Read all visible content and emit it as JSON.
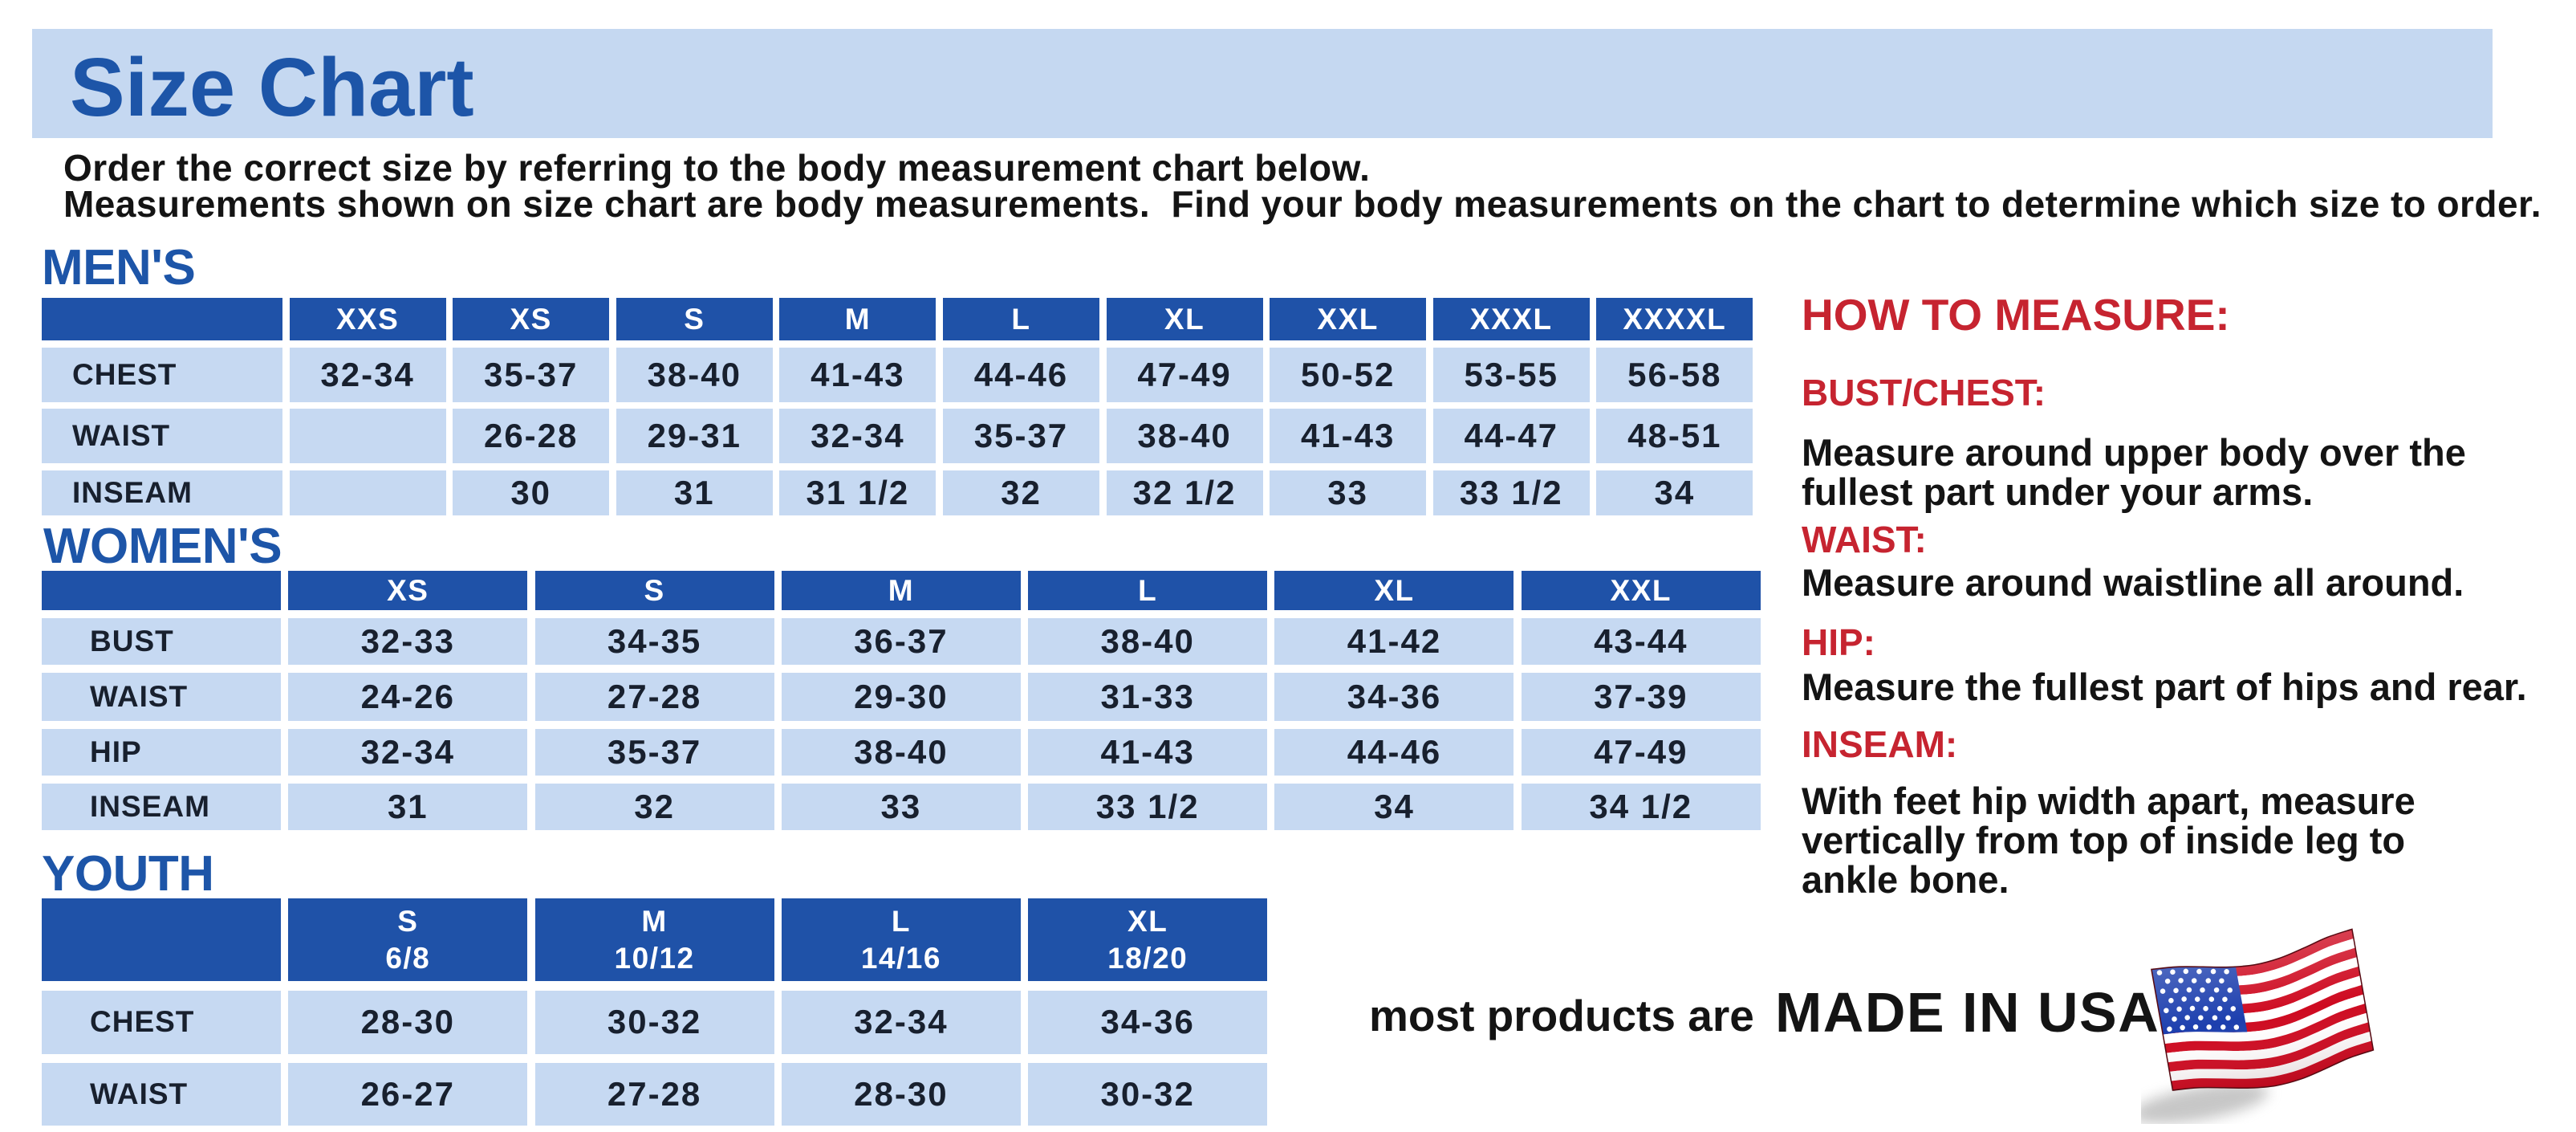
{
  "document": {
    "title": "Size Chart"
  },
  "intro": {
    "line1": "Order the correct size by referring to the body measurement chart below.",
    "line2": "Measurements shown on size chart are body measurements.  Find your body measurements on the chart to determine which size to order."
  },
  "tables": [
    {
      "section": "MEN'S",
      "sizes": [
        "XXS",
        "XS",
        "S",
        "M",
        "L",
        "XL",
        "XXL",
        "XXXL",
        "XXXXL"
      ],
      "rows": [
        {
          "label": "CHEST",
          "values": [
            "32-34",
            "35-37",
            "38-40",
            "41-43",
            "44-46",
            "47-49",
            "50-52",
            "53-55",
            "56-58"
          ]
        },
        {
          "label": "WAIST",
          "values": [
            "",
            "26-28",
            "29-31",
            "32-34",
            "35-37",
            "38-40",
            "41-43",
            "44-47",
            "48-51"
          ]
        },
        {
          "label": "INSEAM",
          "values": [
            "",
            "30",
            "31",
            "31 1/2",
            "32",
            "32 1/2",
            "33",
            "33 1/2",
            "34"
          ]
        }
      ]
    },
    {
      "section": "WOMEN'S",
      "sizes": [
        "XS",
        "S",
        "M",
        "L",
        "XL",
        "XXL"
      ],
      "rows": [
        {
          "label": "BUST",
          "values": [
            "32-33",
            "34-35",
            "36-37",
            "38-40",
            "41-42",
            "43-44"
          ]
        },
        {
          "label": "WAIST",
          "values": [
            "24-26",
            "27-28",
            "29-30",
            "31-33",
            "34-36",
            "37-39"
          ]
        },
        {
          "label": "HIP",
          "values": [
            "32-34",
            "35-37",
            "38-40",
            "41-43",
            "44-46",
            "47-49"
          ]
        },
        {
          "label": "INSEAM",
          "values": [
            "31",
            "32",
            "33",
            "33 1/2",
            "34",
            "34 1/2"
          ]
        }
      ]
    },
    {
      "section": "YOUTH",
      "sizes": [
        "S\n6/8",
        "M\n10/12",
        "L\n14/16",
        "XL\n18/20"
      ],
      "rows": [
        {
          "label": "CHEST",
          "values": [
            "28-30",
            "30-32",
            "32-34",
            "34-36"
          ]
        },
        {
          "label": "WAIST",
          "values": [
            "26-27",
            "27-28",
            "28-30",
            "30-32"
          ]
        }
      ]
    }
  ],
  "how_to_measure": {
    "title": "HOW TO MEASURE:",
    "items": [
      {
        "heading": "BUST/CHEST:",
        "body": "Measure around upper body over the\nfullest part under your arms."
      },
      {
        "heading": "WAIST:",
        "body": "Measure around waistline all around."
      },
      {
        "heading": "HIP:",
        "body": "Measure the fullest part of hips and rear."
      },
      {
        "heading": "INSEAM:",
        "body": "With feet hip width apart, measure\nvertically from top of inside leg to\nankle bone."
      }
    ]
  },
  "footer": {
    "prefix": "most products are",
    "emphasis": "MADE IN USA",
    "flag_icon": "usa-flag-icon"
  },
  "colors": {
    "banner_bg": "#c5d8f1",
    "heading_blue": "#1d55a8",
    "table_header_bg": "#1f52a8",
    "table_cell_bg": "#c6d9f2",
    "cell_text": "#18202e",
    "red": "#c62430",
    "body_text": "#141414"
  }
}
